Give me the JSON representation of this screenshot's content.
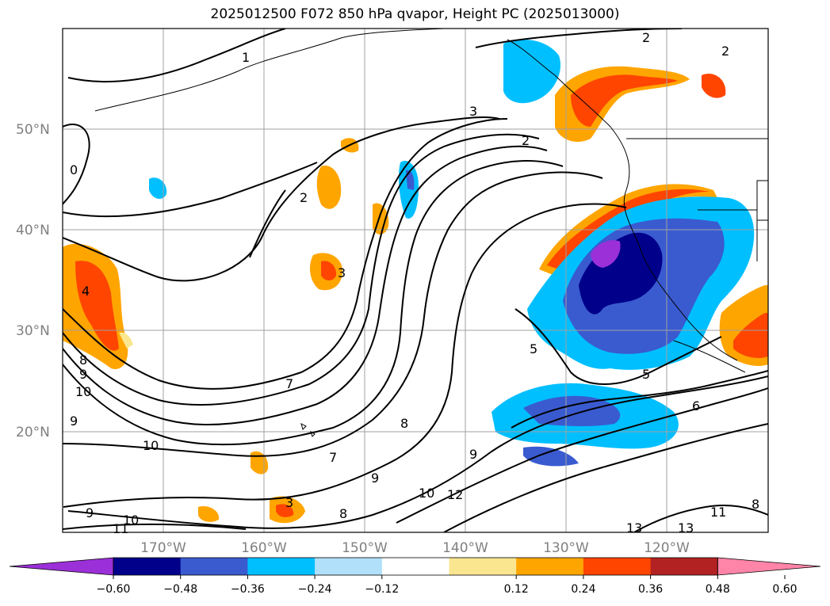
{
  "title": "2025012500 F072 850 hPa qvapor, Height PC (2025013000)",
  "lat_labels": [
    "50°N",
    "40°N",
    "30°N",
    "20°N"
  ],
  "lon_labels": [
    "170°W",
    "160°W",
    "150°W",
    "140°W",
    "130°W",
    "120°W"
  ],
  "colorbar": {
    "tick_labels": [
      "−0.60",
      "−0.48",
      "−0.36",
      "−0.24",
      "−0.12",
      "0.12",
      "0.24",
      "0.36",
      "0.48",
      "0.60"
    ],
    "colors": [
      "#9b30d8",
      "#00008b",
      "#3a5bd0",
      "#00bfff",
      "#b0e0fa",
      "#ffffff",
      "#fbe690",
      "#ffa500",
      "#ff4500",
      "#b22222",
      "#ff85a8"
    ]
  },
  "contour_labels": [
    "1",
    "2",
    "2",
    "2",
    "2",
    "3",
    "3",
    "0",
    "4",
    "8",
    "9",
    "10",
    "9",
    "10",
    "9",
    "10",
    "11",
    "7",
    "7",
    "8",
    "8",
    "9",
    "9",
    "10",
    "12",
    "5",
    "5",
    "6",
    "11",
    "13",
    "13",
    "8",
    "3"
  ]
}
